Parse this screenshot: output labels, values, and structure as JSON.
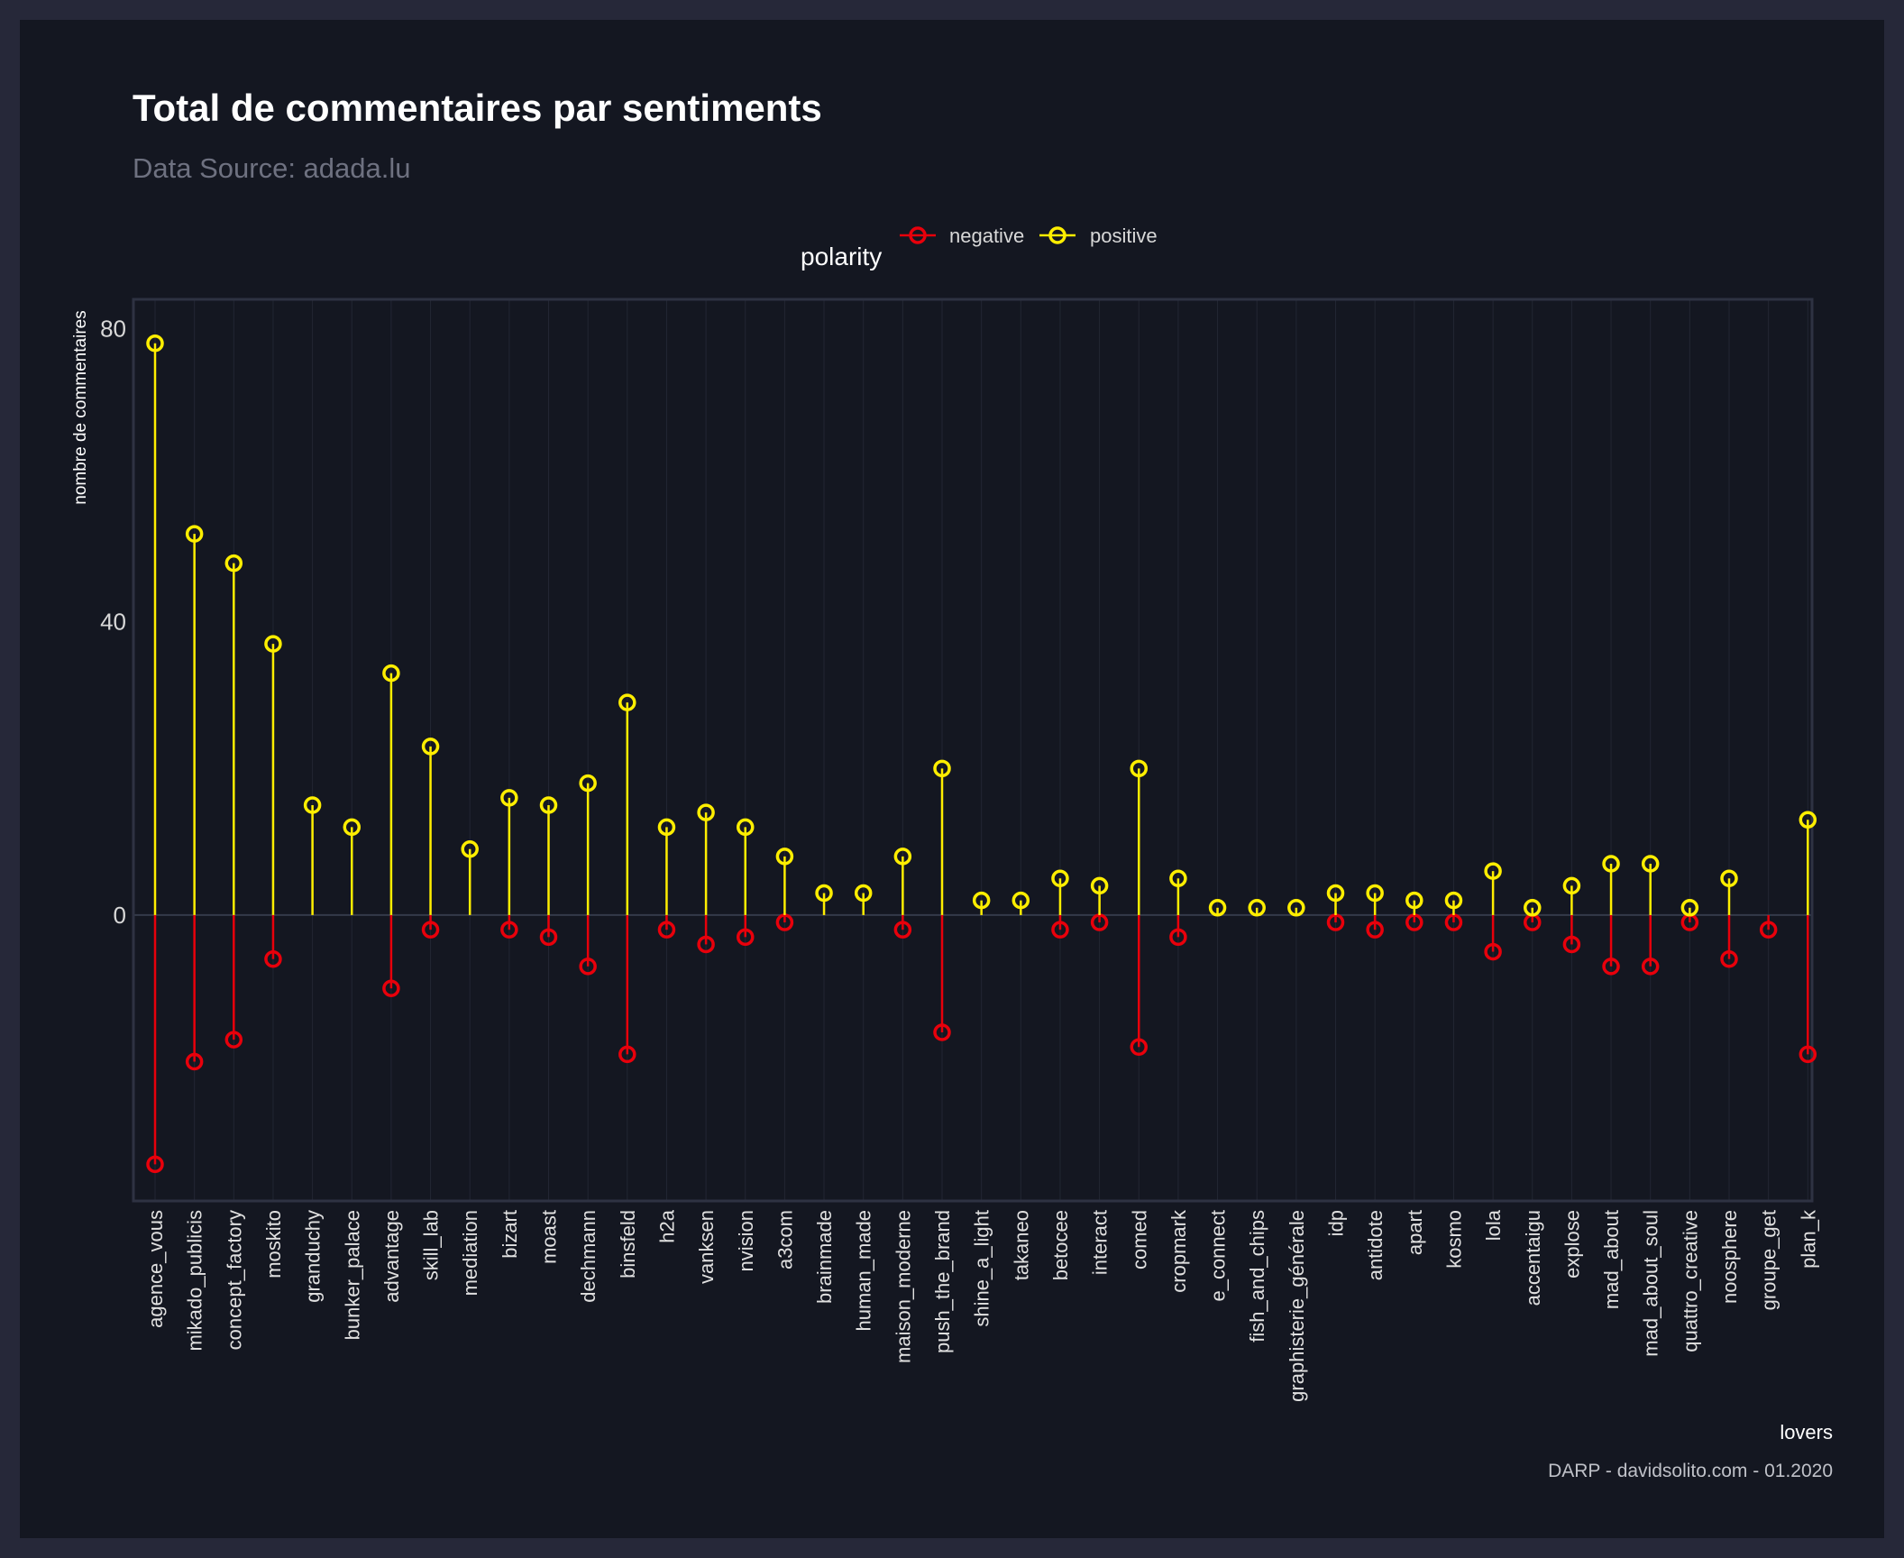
{
  "colors": {
    "background": "#141721",
    "frame": "#262839",
    "negative": "#e8000b",
    "positive": "#ffee00",
    "grid": "#222633"
  },
  "chart_data": {
    "type": "lollipop",
    "title": "Total de commentaires par sentiments",
    "subtitle": "Data Source: adada.lu",
    "xlabel": "lovers",
    "ylabel": "nombre de commentaires",
    "caption": "DARP - davidsolito.com - 01.2020",
    "legend": {
      "title": "polarity",
      "placement": "top",
      "entries": [
        "negative",
        "positive"
      ]
    },
    "ylim": [
      -39,
      84
    ],
    "yticks": [
      0,
      40,
      80
    ],
    "grid": true,
    "categories": [
      "agence_vous",
      "mikado_publicis",
      "concept_factory",
      "moskito",
      "granduchy",
      "bunker_palace",
      "advantage",
      "skill_lab",
      "mediation",
      "bizart",
      "moast",
      "dechmann",
      "binsfeld",
      "h2a",
      "vanksen",
      "nvision",
      "a3com",
      "brainmade",
      "human_made",
      "maison_moderne",
      "push_the_brand",
      "shine_a_light",
      "takaneo",
      "betocee",
      "interact",
      "comed",
      "cropmark",
      "e_connect",
      "fish_and_chips",
      "graphisterie_générale",
      "idp",
      "antidote",
      "apart",
      "kosmo",
      "lola",
      "accentaigu",
      "explose",
      "mad_about",
      "mad_about_soul",
      "quattro_creative",
      "noosphere",
      "groupe_get",
      "plan_k"
    ],
    "series": [
      {
        "name": "negative",
        "values": [
          -34,
          -20,
          -17,
          -6,
          null,
          null,
          -10,
          -2,
          null,
          -2,
          -3,
          -7,
          -19,
          -2,
          -4,
          -3,
          -1,
          null,
          null,
          -2,
          -16,
          null,
          null,
          -2,
          -1,
          -18,
          -3,
          null,
          null,
          null,
          -1,
          -2,
          -1,
          -1,
          -5,
          -1,
          -4,
          -7,
          -7,
          -1,
          -6,
          -2,
          -19
        ]
      },
      {
        "name": "positive",
        "values": [
          78,
          52,
          48,
          37,
          15,
          12,
          33,
          23,
          9,
          16,
          15,
          18,
          29,
          12,
          14,
          12,
          8,
          3,
          3,
          8,
          20,
          2,
          2,
          5,
          4,
          20,
          5,
          1,
          1,
          1,
          3,
          3,
          2,
          2,
          6,
          1,
          4,
          7,
          7,
          1,
          5,
          null,
          13
        ]
      }
    ]
  }
}
